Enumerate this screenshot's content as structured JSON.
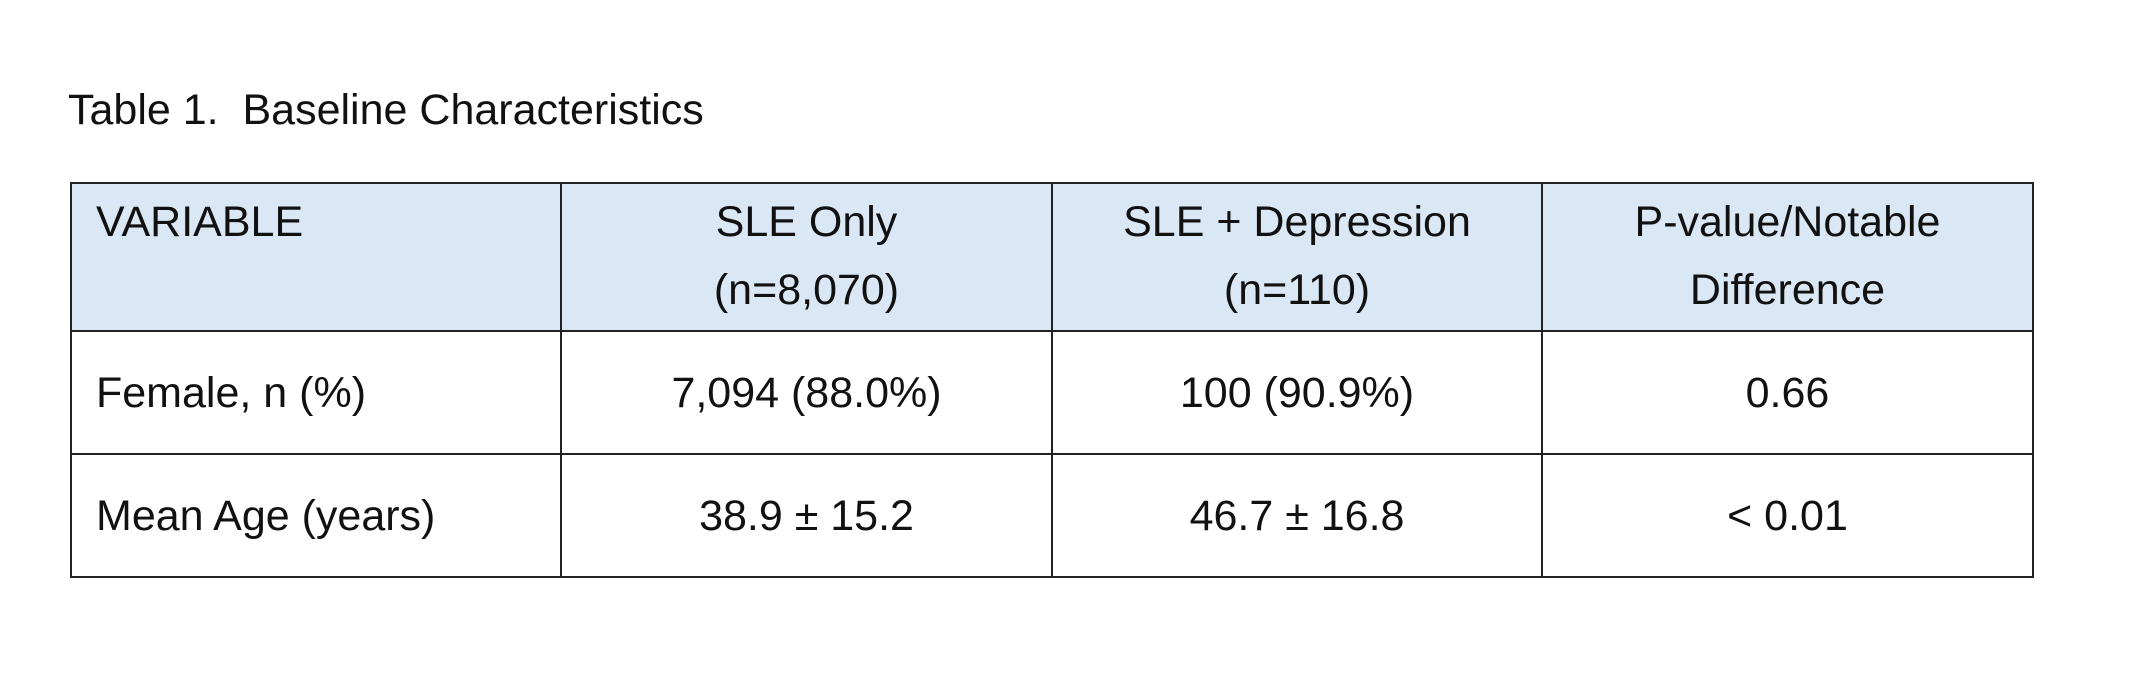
{
  "caption": "Table 1.  Baseline Characteristics",
  "table": {
    "headers": [
      {
        "line1": "VARIABLE",
        "line2": ""
      },
      {
        "line1": "SLE Only",
        "line2": "(n=8,070)"
      },
      {
        "line1": "SLE + Depression",
        "line2": "(n=110)"
      },
      {
        "line1": "P-value/Notable",
        "line2": "Difference"
      }
    ],
    "rows": [
      {
        "variable": "Female, n (%)",
        "sle_only": "7,094 (88.0%)",
        "sle_depression": "100 (90.9%)",
        "p_value": "0.66"
      },
      {
        "variable": "Mean Age (years)",
        "sle_only": "38.9 ± 15.2",
        "sle_depression": "46.7 ± 16.8",
        "p_value": "< 0.01"
      }
    ]
  },
  "colors": {
    "header_bg": "#dae8f5",
    "border": "#222222",
    "text": "#111111"
  }
}
